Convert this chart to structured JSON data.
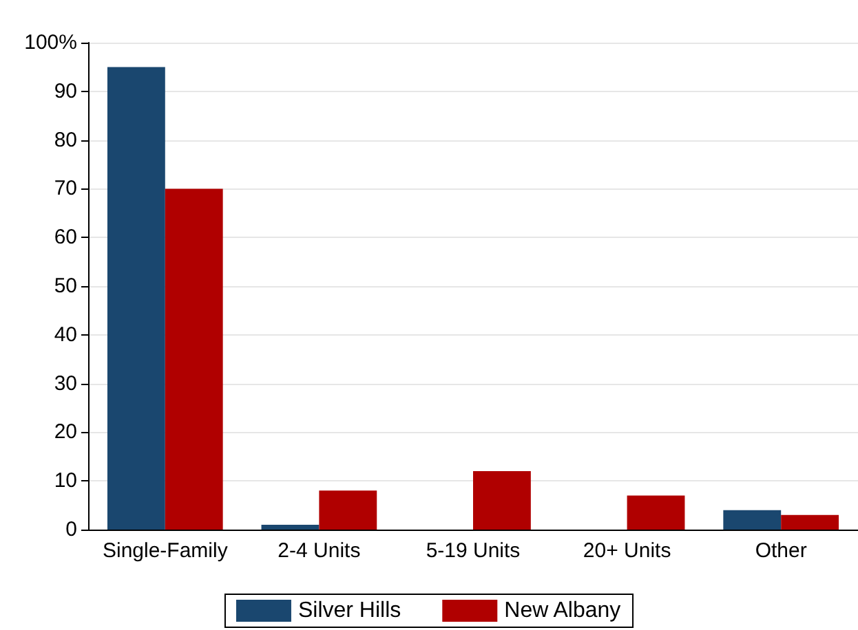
{
  "chart_data": {
    "type": "bar",
    "categories": [
      "Single-Family",
      "2-4 Units",
      "5-19 Units",
      "20+ Units",
      "Other"
    ],
    "series": [
      {
        "name": "Silver Hills",
        "color": "#1a476f",
        "values": [
          95,
          1,
          0,
          0,
          4
        ]
      },
      {
        "name": "New Albany",
        "color": "#b00000",
        "values": [
          70,
          8,
          12,
          7,
          3
        ]
      }
    ],
    "ylim": [
      0,
      100
    ],
    "yticks": [
      0,
      10,
      20,
      30,
      40,
      50,
      60,
      70,
      80,
      90,
      {
        "value": 100,
        "label": "100%"
      }
    ],
    "grid": "y",
    "legend": "bottom"
  }
}
